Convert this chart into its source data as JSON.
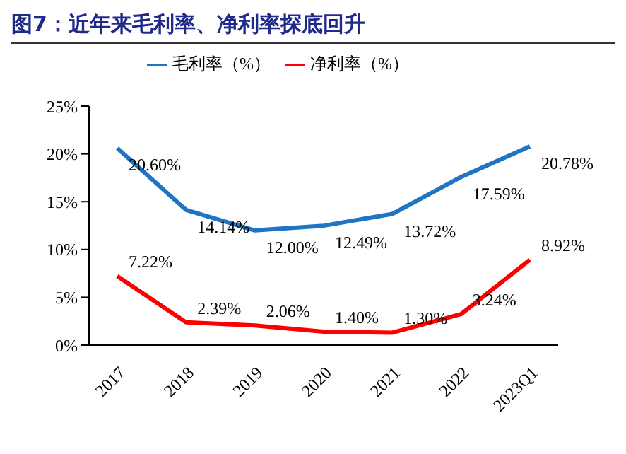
{
  "chart_data": {
    "type": "line",
    "title": "图7：近年来毛利率、净利率探底回升",
    "categories": [
      "2017",
      "2018",
      "2019",
      "2020",
      "2021",
      "2022",
      "2023Q1"
    ],
    "series": [
      {
        "name": "毛利率（%）",
        "color": "#1f74c4",
        "values": [
          20.6,
          14.14,
          12.0,
          12.49,
          13.72,
          17.59,
          20.78
        ],
        "value_labels": [
          "20.60%",
          "14.14%",
          "12.00%",
          "12.49%",
          "13.72%",
          "17.59%",
          "20.78%"
        ]
      },
      {
        "name": "净利率（%）",
        "color": "#ff0000",
        "values": [
          7.22,
          2.39,
          2.06,
          1.4,
          1.3,
          3.24,
          8.92
        ],
        "value_labels": [
          "7.22%",
          "2.39%",
          "2.06%",
          "1.40%",
          "1.30%",
          "3.24%",
          "8.92%"
        ]
      }
    ],
    "ylim": [
      0,
      25
    ],
    "yticks": [
      {
        "value": 0,
        "label": "0%"
      },
      {
        "value": 5,
        "label": "5%"
      },
      {
        "value": 10,
        "label": "10%"
      },
      {
        "value": 15,
        "label": "15%"
      },
      {
        "value": 20,
        "label": "20%"
      },
      {
        "value": 25,
        "label": "25%"
      }
    ],
    "legend": "top",
    "grid": false,
    "marker": "none",
    "line_style": "solid"
  }
}
